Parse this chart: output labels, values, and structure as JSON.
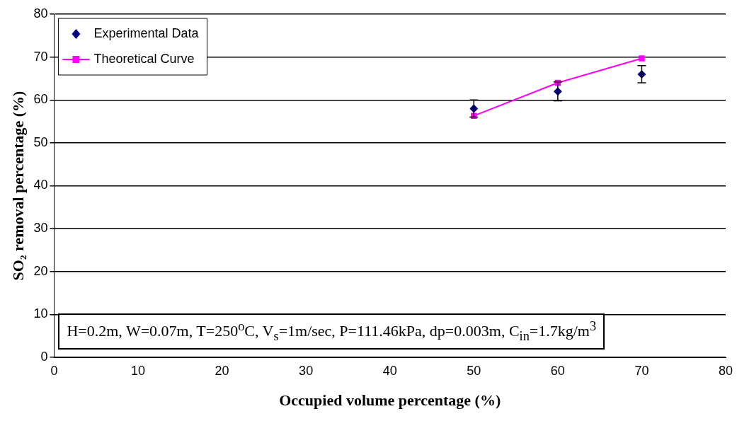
{
  "chart_data": {
    "type": "scatter",
    "xlabel": "Occupied volume percentage (%)",
    "ylabel": "SO₂ removal percentage (%)",
    "x": [
      50,
      60,
      70
    ],
    "series": [
      {
        "name": "Experimental Data",
        "type": "scatter",
        "color": "#000080",
        "marker": "diamond",
        "values": [
          58,
          62,
          66
        ],
        "errors": [
          2,
          2.2,
          2
        ]
      },
      {
        "name": "Theoretical Curve",
        "type": "line",
        "color": "#ff00ff",
        "marker": "square",
        "values": [
          56.3,
          64,
          69.7
        ]
      }
    ],
    "xlim": [
      0,
      80
    ],
    "xticks": [
      0,
      10,
      20,
      30,
      40,
      50,
      60,
      70,
      80
    ],
    "ylim": [
      0,
      80
    ],
    "yticks": [
      0,
      10,
      20,
      30,
      40,
      50,
      60,
      70,
      80
    ],
    "grid": "y",
    "legend": "top left",
    "annotations": [
      "H=0.2m, W=0.07m, T=250$^{o}$C, V$_{s}$=1m/sec, P=111.46kPa, dp=0.003m, C$_{in}$=1.7kg/m$^{3}$"
    ]
  }
}
